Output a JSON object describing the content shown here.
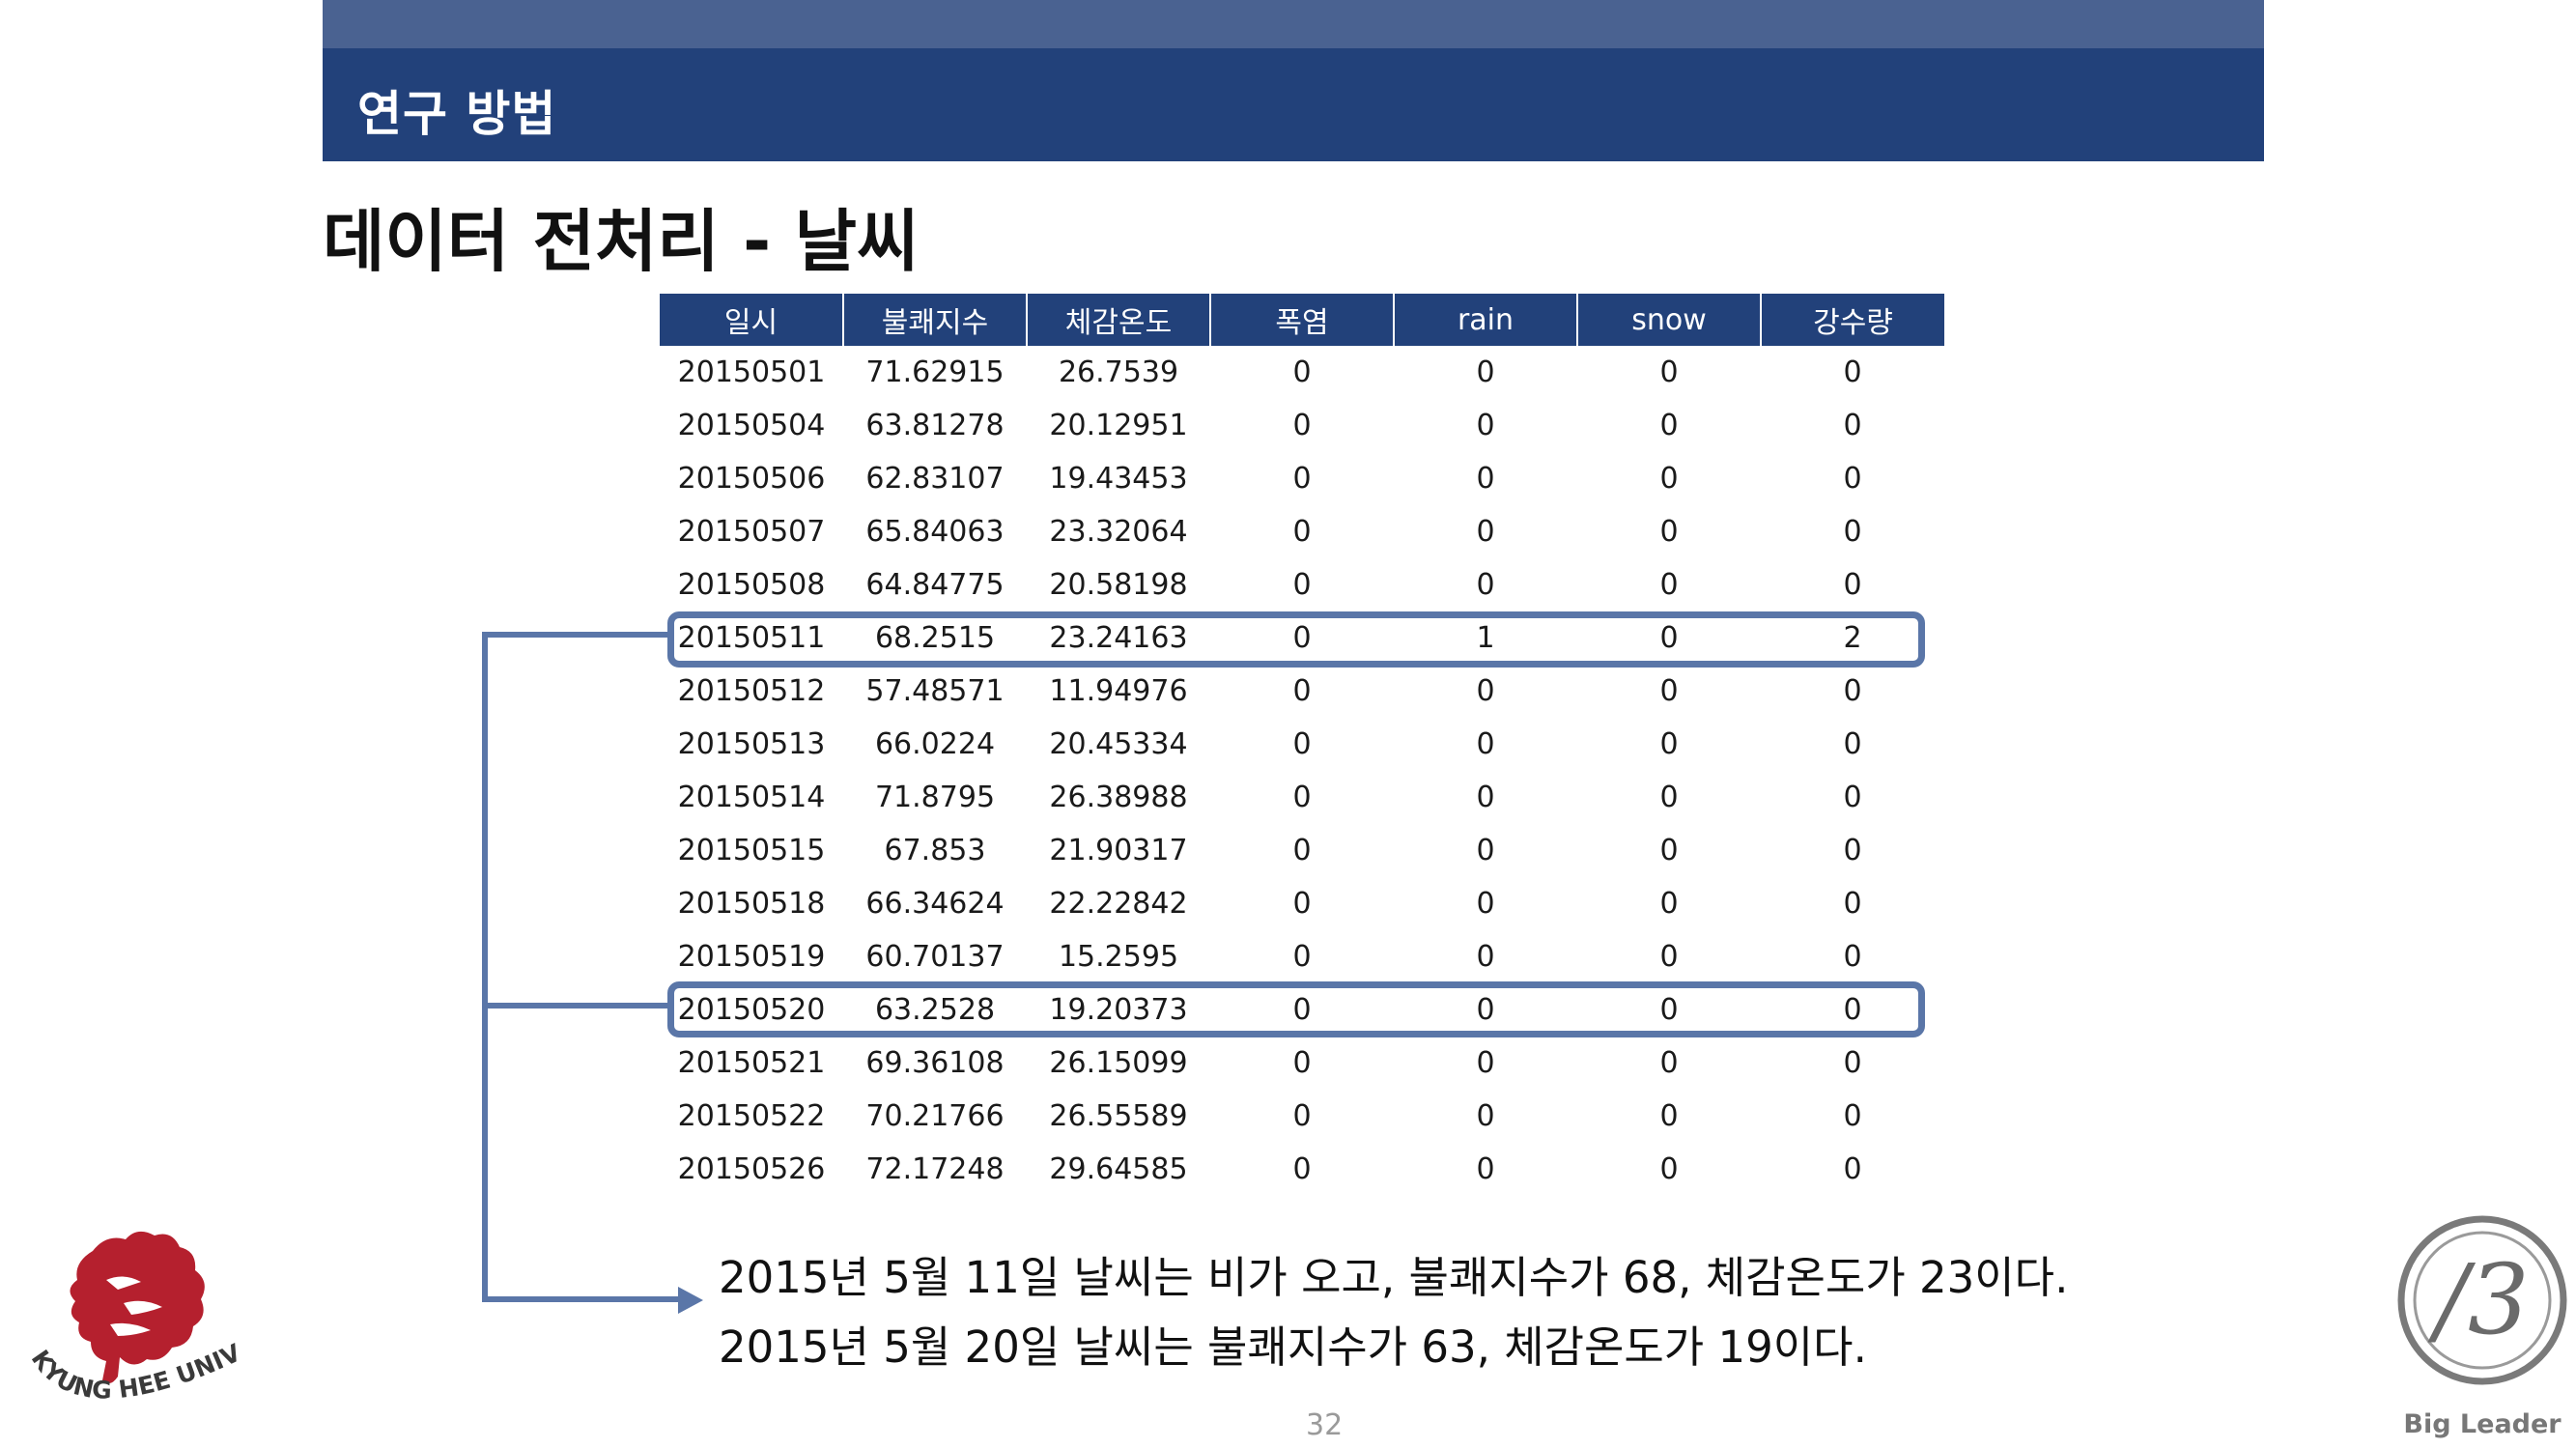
{
  "header": {
    "title": "연구 방법"
  },
  "subtitle": "데이터 전처리 - 날씨",
  "table": {
    "columns": [
      "일시",
      "불쾌지수",
      "체감온도",
      "폭염",
      "rain",
      "snow",
      "강수량"
    ],
    "rows": [
      [
        "20150501",
        "71.62915",
        "26.7539",
        "0",
        "0",
        "0",
        "0"
      ],
      [
        "20150504",
        "63.81278",
        "20.12951",
        "0",
        "0",
        "0",
        "0"
      ],
      [
        "20150506",
        "62.83107",
        "19.43453",
        "0",
        "0",
        "0",
        "0"
      ],
      [
        "20150507",
        "65.84063",
        "23.32064",
        "0",
        "0",
        "0",
        "0"
      ],
      [
        "20150508",
        "64.84775",
        "20.58198",
        "0",
        "0",
        "0",
        "0"
      ],
      [
        "20150511",
        "68.2515",
        "23.24163",
        "0",
        "1",
        "0",
        "2"
      ],
      [
        "20150512",
        "57.48571",
        "11.94976",
        "0",
        "0",
        "0",
        "0"
      ],
      [
        "20150513",
        "66.0224",
        "20.45334",
        "0",
        "0",
        "0",
        "0"
      ],
      [
        "20150514",
        "71.8795",
        "26.38988",
        "0",
        "0",
        "0",
        "0"
      ],
      [
        "20150515",
        "67.853",
        "21.90317",
        "0",
        "0",
        "0",
        "0"
      ],
      [
        "20150518",
        "66.34624",
        "22.22842",
        "0",
        "0",
        "0",
        "0"
      ],
      [
        "20150519",
        "60.70137",
        "15.2595",
        "0",
        "0",
        "0",
        "0"
      ],
      [
        "20150520",
        "63.2528",
        "19.20373",
        "0",
        "0",
        "0",
        "0"
      ],
      [
        "20150521",
        "69.36108",
        "26.15099",
        "0",
        "0",
        "0",
        "0"
      ],
      [
        "20150522",
        "70.21766",
        "26.55589",
        "0",
        "0",
        "0",
        "0"
      ],
      [
        "20150526",
        "72.17248",
        "29.64585",
        "0",
        "0",
        "0",
        "0"
      ]
    ],
    "highlighted_rows": [
      "20150511",
      "20150520"
    ]
  },
  "summary": [
    "2015년 5월 11일 날씨는 비가 오고, 불쾌지수가 68, 체감온도가 23이다.",
    "2015년 5월 20일 날씨는 불쾌지수가 63, 체감온도가 19이다."
  ],
  "page_number": "32",
  "logos": {
    "university": "KYUNG HEE UNIVERSITY",
    "brand": "Big Leader"
  },
  "colors": {
    "header": "#22417a",
    "band": "#4a6291",
    "highlight": "#5a76a8",
    "lion": "#b5202e"
  }
}
